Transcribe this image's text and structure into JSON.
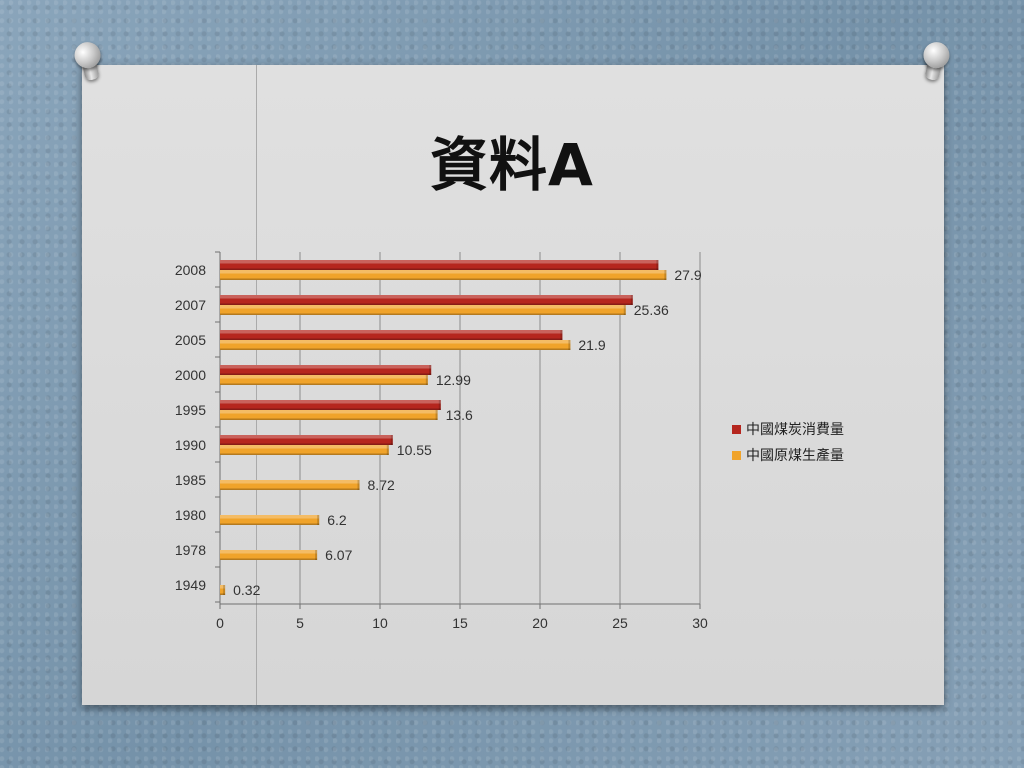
{
  "title": "資料A",
  "colors": {
    "consumption": "#b5261e",
    "production": "#f0a32a"
  },
  "chart_data": {
    "type": "bar",
    "orientation": "horizontal",
    "categories": [
      "2008",
      "2007",
      "2005",
      "2000",
      "1995",
      "1990",
      "1985",
      "1980",
      "1978",
      "1949"
    ],
    "series": [
      {
        "name": "中國煤炭消費量",
        "values": [
          27.4,
          25.8,
          21.4,
          13.2,
          13.8,
          10.8,
          null,
          null,
          null,
          null
        ]
      },
      {
        "name": "中國原煤生產量",
        "values": [
          27.9,
          25.36,
          21.9,
          12.99,
          13.6,
          10.55,
          8.72,
          6.2,
          6.07,
          0.32
        ]
      }
    ],
    "data_labels": [
      "27.9",
      "25.36",
      "21.9",
      "12.99",
      "13.6",
      "10.55",
      "8.72",
      "6.2",
      "6.07",
      "0.32"
    ],
    "xlim": [
      0,
      30
    ],
    "xticks": [
      "0",
      "5",
      "10",
      "15",
      "20",
      "25",
      "30"
    ],
    "grid": true,
    "legend_position": "right"
  }
}
